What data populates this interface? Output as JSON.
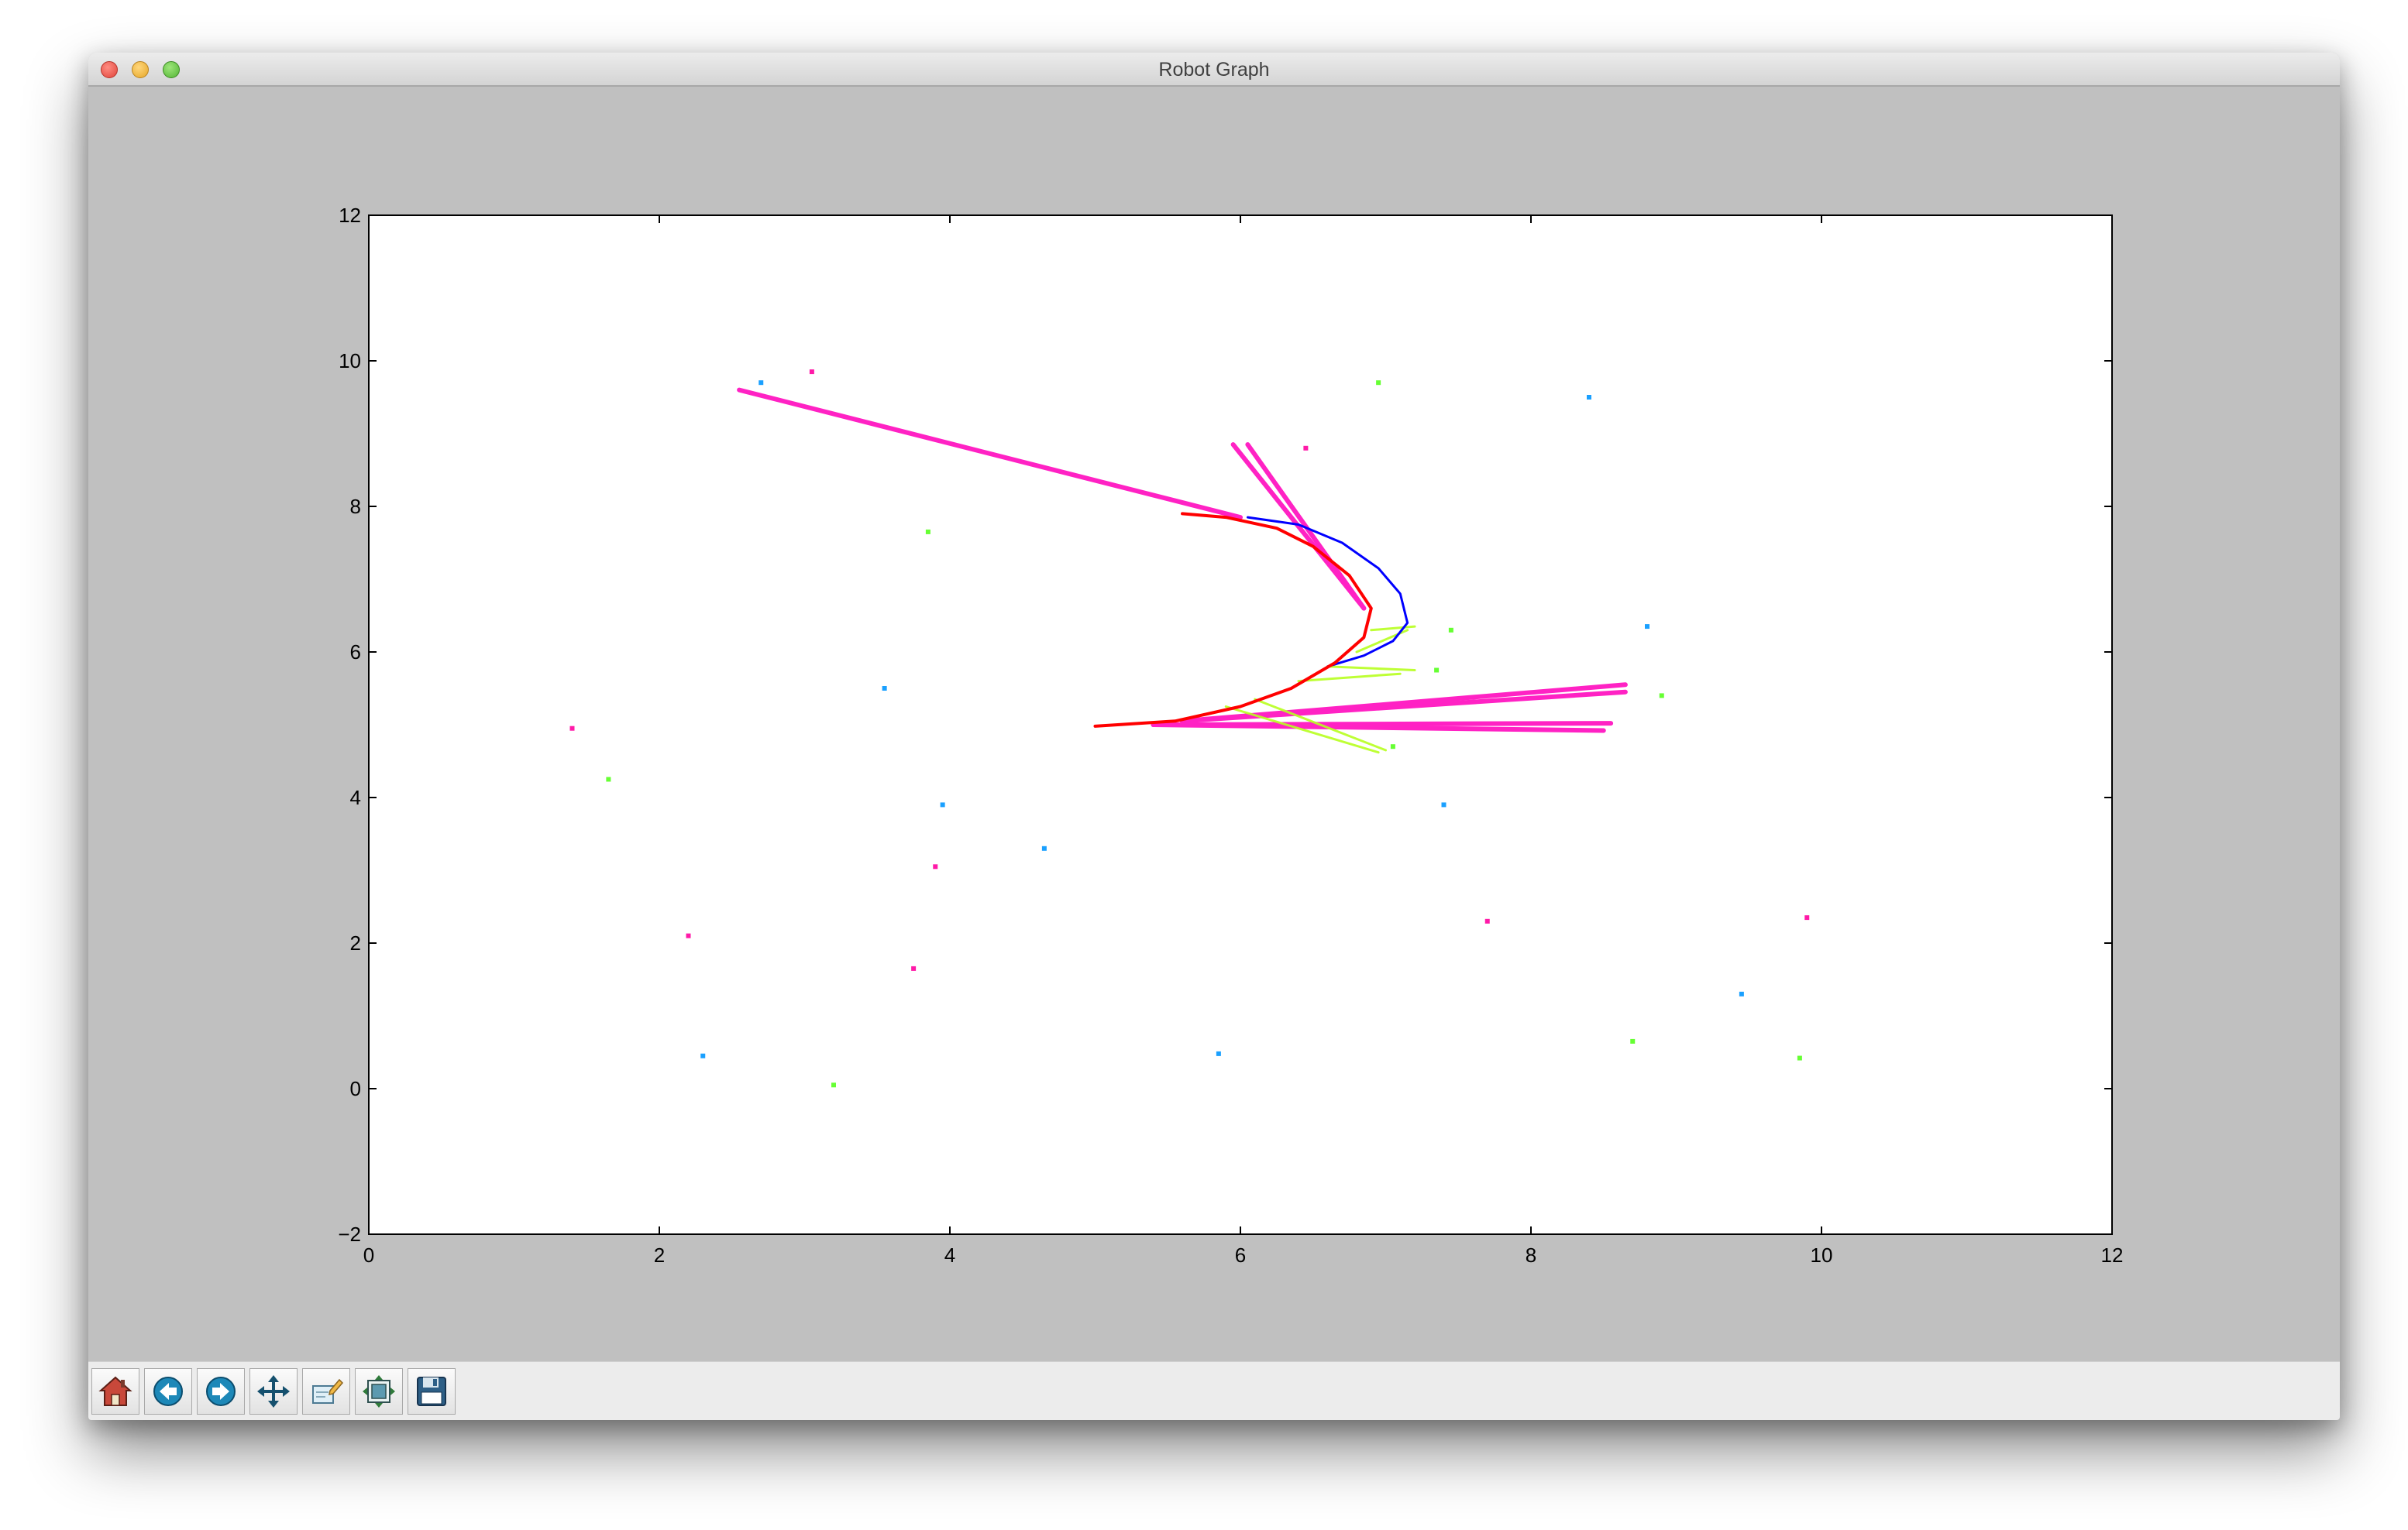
{
  "window": {
    "title": "Robot Graph"
  },
  "toolbar": {
    "buttons": [
      {
        "name": "home",
        "icon": "home-icon"
      },
      {
        "name": "back",
        "icon": "back-arrow-icon"
      },
      {
        "name": "forward",
        "icon": "forward-arrow-icon"
      },
      {
        "name": "pan",
        "icon": "move-cross-icon"
      },
      {
        "name": "zoom",
        "icon": "zoom-rect-icon"
      },
      {
        "name": "subplots",
        "icon": "configure-subplots-icon"
      },
      {
        "name": "save",
        "icon": "floppy-save-icon"
      }
    ]
  },
  "colors": {
    "path_fitted": "#0000ff",
    "path_estimated": "#ff0000",
    "rays_strong": "#ff22c4",
    "rays_weak": "#b8ff20",
    "landmarks_cyan": "#1aa0ff",
    "landmarks_magenta": "#ff1aa8",
    "landmarks_green": "#66ff33"
  },
  "chart_data": {
    "type": "line",
    "xlim": [
      0,
      12
    ],
    "ylim": [
      -2,
      12
    ],
    "xticks": [
      "0",
      "2",
      "4",
      "6",
      "8",
      "10",
      "12"
    ],
    "yticks": [
      "−2",
      "0",
      "2",
      "4",
      "6",
      "8",
      "10",
      "12"
    ],
    "grid": false,
    "series": [
      {
        "style": "blue-curve",
        "points": [
          [
            6.05,
            7.85
          ],
          [
            6.4,
            7.75
          ],
          [
            6.7,
            7.5
          ],
          [
            6.95,
            7.15
          ],
          [
            7.1,
            6.8
          ],
          [
            7.15,
            6.4
          ],
          [
            7.05,
            6.15
          ],
          [
            6.85,
            5.95
          ],
          [
            6.6,
            5.8
          ]
        ]
      },
      {
        "style": "red-curve",
        "points": [
          [
            5.6,
            7.9
          ],
          [
            5.9,
            7.85
          ],
          [
            6.25,
            7.7
          ],
          [
            6.5,
            7.45
          ],
          [
            6.75,
            7.05
          ],
          [
            6.9,
            6.6
          ],
          [
            6.85,
            6.2
          ],
          [
            6.65,
            5.85
          ],
          [
            6.35,
            5.5
          ],
          [
            6.0,
            5.25
          ],
          [
            5.55,
            5.05
          ],
          [
            5.0,
            4.98
          ]
        ]
      },
      {
        "style": "magenta-rays",
        "segments": [
          [
            [
              6.0,
              7.85
            ],
            [
              2.55,
              9.6
            ]
          ],
          [
            [
              6.85,
              6.6
            ],
            [
              5.95,
              8.85
            ]
          ],
          [
            [
              6.85,
              6.6
            ],
            [
              6.05,
              8.85
            ]
          ],
          [
            [
              5.6,
              5.05
            ],
            [
              8.65,
              5.55
            ]
          ],
          [
            [
              5.6,
              5.05
            ],
            [
              8.65,
              5.45
            ]
          ],
          [
            [
              5.4,
              5.0
            ],
            [
              8.55,
              5.02
            ]
          ],
          [
            [
              5.4,
              5.0
            ],
            [
              8.5,
              4.92
            ]
          ]
        ]
      },
      {
        "style": "green-rays",
        "segments": [
          [
            [
              6.9,
              6.3
            ],
            [
              7.2,
              6.35
            ]
          ],
          [
            [
              6.8,
              6.0
            ],
            [
              7.15,
              6.3
            ]
          ],
          [
            [
              6.6,
              5.8
            ],
            [
              7.2,
              5.75
            ]
          ],
          [
            [
              6.4,
              5.6
            ],
            [
              7.1,
              5.7
            ]
          ],
          [
            [
              6.1,
              5.35
            ],
            [
              7.0,
              4.65
            ]
          ],
          [
            [
              5.9,
              5.25
            ],
            [
              6.95,
              4.62
            ]
          ]
        ]
      }
    ],
    "landmarks": {
      "cyan": [
        [
          2.7,
          9.7
        ],
        [
          8.4,
          9.5
        ],
        [
          8.8,
          6.35
        ],
        [
          3.55,
          5.5
        ],
        [
          3.95,
          3.9
        ],
        [
          4.65,
          3.3
        ],
        [
          7.4,
          3.9
        ],
        [
          9.45,
          1.3
        ],
        [
          2.3,
          0.45
        ],
        [
          5.85,
          0.48
        ]
      ],
      "magenta": [
        [
          3.05,
          9.85
        ],
        [
          6.45,
          8.8
        ],
        [
          1.4,
          4.95
        ],
        [
          3.9,
          3.05
        ],
        [
          2.2,
          2.1
        ],
        [
          3.75,
          1.65
        ],
        [
          7.7,
          2.3
        ],
        [
          9.9,
          2.35
        ]
      ],
      "green": [
        [
          6.95,
          9.7
        ],
        [
          3.85,
          7.65
        ],
        [
          7.45,
          6.3
        ],
        [
          7.35,
          5.75
        ],
        [
          8.9,
          5.4
        ],
        [
          7.05,
          4.7
        ],
        [
          1.65,
          4.25
        ],
        [
          3.2,
          0.05
        ],
        [
          8.7,
          0.65
        ],
        [
          9.85,
          0.42
        ]
      ]
    }
  }
}
